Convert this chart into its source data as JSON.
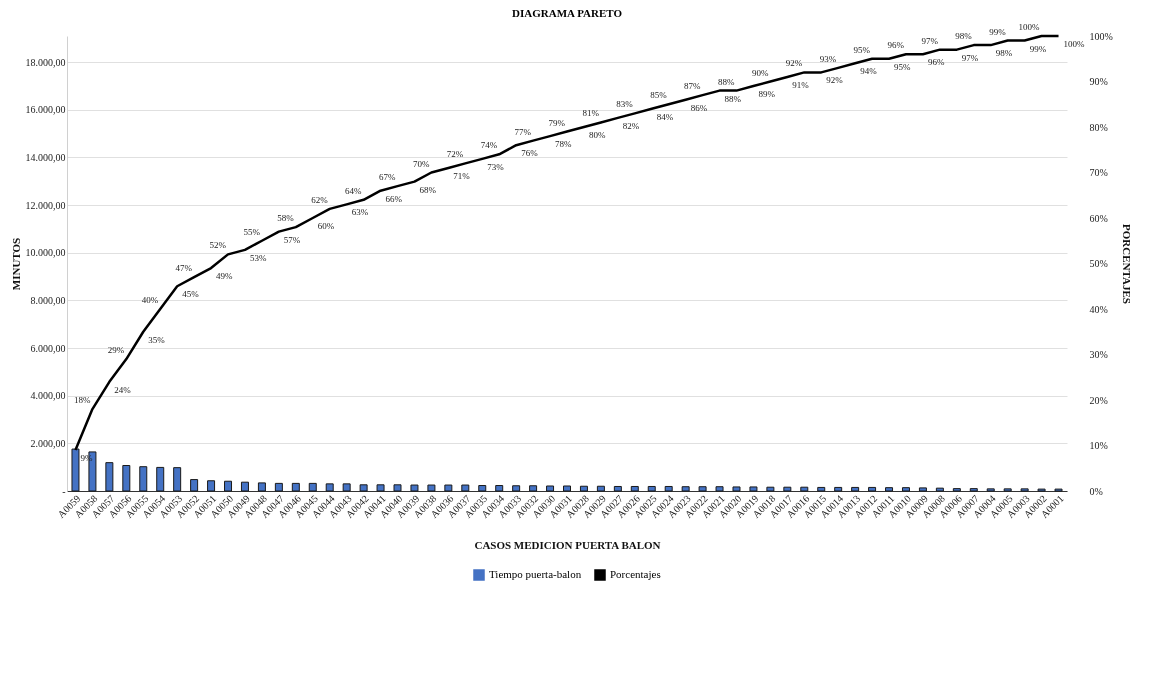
{
  "chart_data": {
    "type": "bar",
    "title": "DIAGRAMA PARETO",
    "xlabel": "CASOS MEDICION PUERTA BALON",
    "ylabel": "MINUTOS",
    "y2label": "PORCENTAJES",
    "categories": [
      "A0059",
      "A0058",
      "A0057",
      "A0056",
      "A0055",
      "A0054",
      "A0053",
      "A0052",
      "A0051",
      "A0050",
      "A0049",
      "A0048",
      "A0047",
      "A0046",
      "A0045",
      "A0044",
      "A0043",
      "A0042",
      "A0041",
      "A0040",
      "A0039",
      "A0038",
      "A0036",
      "A0037",
      "A0035",
      "A0034",
      "A0033",
      "A0032",
      "A0030",
      "A0031",
      "A0028",
      "A0029",
      "A0027",
      "A0026",
      "A0025",
      "A0024",
      "A0023",
      "A0022",
      "A0021",
      "A0020",
      "A0019",
      "A0018",
      "A0017",
      "A0016",
      "A0015",
      "A0014",
      "A0013",
      "A0012",
      "A0011",
      "A0010",
      "A0009",
      "A0008",
      "A0006",
      "A0007",
      "A0004",
      "A0005",
      "A0003",
      "A0002",
      "A0001"
    ],
    "series": [
      {
        "name": "Tiempo puerta-balon",
        "color": "#4472c4",
        "values": [
          1760,
          1640,
          1190,
          1070,
          1020,
          990,
          980,
          480,
          430,
          410,
          370,
          340,
          320,
          320,
          320,
          300,
          300,
          260,
          260,
          260,
          250,
          250,
          250,
          250,
          230,
          230,
          220,
          220,
          210,
          210,
          200,
          200,
          190,
          190,
          190,
          190,
          180,
          180,
          180,
          170,
          170,
          160,
          160,
          160,
          150,
          150,
          150,
          150,
          140,
          140,
          130,
          120,
          100,
          100,
          90,
          90,
          90,
          80,
          80
        ]
      },
      {
        "name": "Porcentajes",
        "type": "line",
        "axis": "y2",
        "color": "#000000",
        "values": [
          9,
          18,
          24,
          29,
          35,
          40,
          45,
          47,
          49,
          52,
          53,
          55,
          57,
          58,
          60,
          62,
          63,
          64,
          66,
          67,
          68,
          70,
          71,
          72,
          73,
          74,
          76,
          77,
          78,
          79,
          80,
          81,
          82,
          83,
          84,
          85,
          86,
          87,
          88,
          88,
          89,
          90,
          91,
          92,
          92,
          93,
          94,
          95,
          95,
          96,
          96,
          97,
          97,
          98,
          98,
          99,
          99,
          100,
          100
        ],
        "value_labels": [
          "9%",
          "18%",
          "24%",
          "29%",
          "35%",
          "40%",
          "45%",
          "47%",
          "49%",
          "52%",
          "53%",
          "55%",
          "57%",
          "58%",
          "60%",
          "62%",
          "63%",
          "64%",
          "66%",
          "67%",
          "68%",
          "70%",
          "71%",
          "72%",
          "73%",
          "74%",
          "76%",
          "77%",
          "78%",
          "79%",
          "80%",
          "81%",
          "82%",
          "83%",
          "84%",
          "85%",
          "86%",
          "87%",
          "88%",
          "88%",
          "89%",
          "90%",
          "91%",
          "92%",
          "92%",
          "93%",
          "94%",
          "95%",
          "95%",
          "96%",
          "96%",
          "97%",
          "97%",
          "98%",
          "98%",
          "99%",
          "99%",
          "100%",
          "100%"
        ]
      }
    ],
    "ylim": [
      0,
      19100
    ],
    "yticks": [
      {
        "value": 0,
        "label": "-"
      },
      {
        "value": 2000,
        "label": "2.000,00"
      },
      {
        "value": 4000,
        "label": "4.000,00"
      },
      {
        "value": 6000,
        "label": "6.000,00"
      },
      {
        "value": 8000,
        "label": "8.000,00"
      },
      {
        "value": 10000,
        "label": "10.000,00"
      },
      {
        "value": 12000,
        "label": "12.000,00"
      },
      {
        "value": 14000,
        "label": "14.000,00"
      },
      {
        "value": 16000,
        "label": "16.000,00"
      },
      {
        "value": 18000,
        "label": "18.000,00"
      }
    ],
    "y2lim": [
      0,
      100
    ],
    "y2ticks": [
      {
        "value": 0,
        "label": "0%"
      },
      {
        "value": 10,
        "label": "10%"
      },
      {
        "value": 20,
        "label": "20%"
      },
      {
        "value": 30,
        "label": "30%"
      },
      {
        "value": 40,
        "label": "40%"
      },
      {
        "value": 50,
        "label": "50%"
      },
      {
        "value": 60,
        "label": "60%"
      },
      {
        "value": 70,
        "label": "70%"
      },
      {
        "value": 80,
        "label": "80%"
      },
      {
        "value": 90,
        "label": "90%"
      },
      {
        "value": 100,
        "label": "100%"
      }
    ],
    "grid": "y",
    "legend": "bottom",
    "marker": "none",
    "line_style": "solid"
  }
}
